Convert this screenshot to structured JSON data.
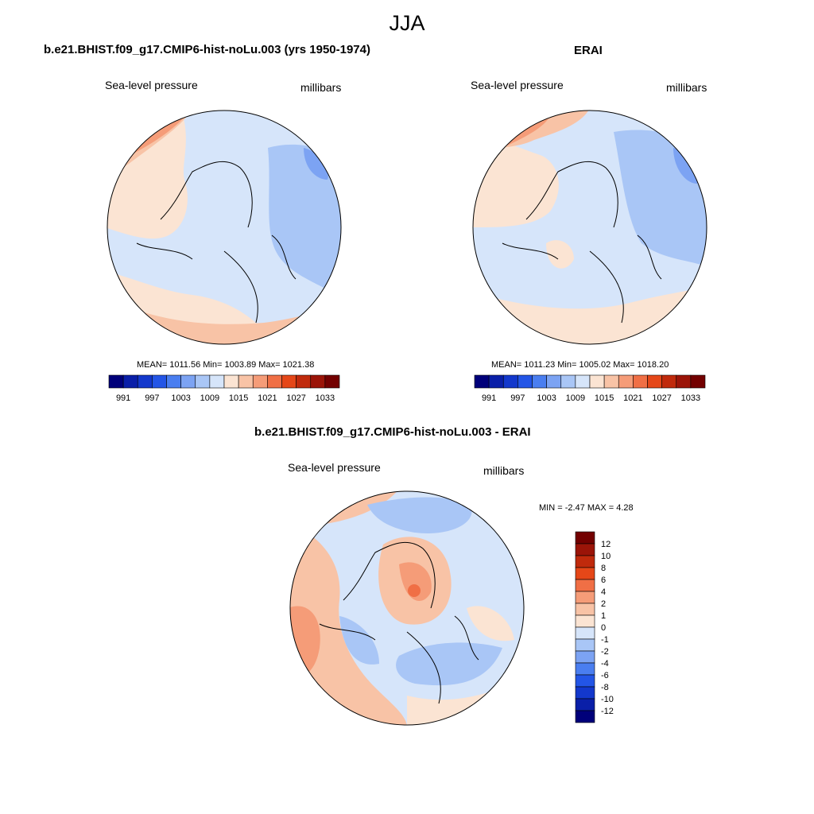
{
  "main_title": "JJA",
  "panels": [
    {
      "title": "b.e21.BHIST.f09_g17.CMIP6-hist-noLu.003 (yrs 1950-1974)",
      "left_label": "Sea-level pressure",
      "right_label": "millibars",
      "stats": "MEAN= 1011.56  Min= 1003.89  Max= 1021.38"
    },
    {
      "title": "ERAI",
      "left_label": "Sea-level pressure",
      "right_label": "millibars",
      "stats": "MEAN= 1011.23  Min= 1005.02  Max= 1018.20"
    },
    {
      "title": "b.e21.BHIST.f09_g17.CMIP6-hist-noLu.003 - ERAI",
      "left_label": "Sea-level pressure",
      "right_label": "millibars",
      "stats": "MIN =  -2.47 MAX =   4.28"
    }
  ],
  "colorbar_abs": {
    "colors": [
      "#00007a",
      "#0a1fa8",
      "#1338cc",
      "#2355e6",
      "#4a7ef0",
      "#7ca3f3",
      "#a9c6f6",
      "#d6e5fa",
      "#fbe4d3",
      "#f8c3a6",
      "#f59c78",
      "#f06f45",
      "#e54718",
      "#c02a0c",
      "#9b1408",
      "#730000"
    ],
    "tick_labels": [
      "991",
      "997",
      "1003",
      "1009",
      "1015",
      "1021",
      "1027",
      "1033"
    ]
  },
  "colorbar_diff": {
    "colors": [
      "#00007a",
      "#0a1fa8",
      "#1338cc",
      "#2355e6",
      "#4a7ef0",
      "#7ca3f3",
      "#a9c6f6",
      "#d6e5fa",
      "#fbe4d3",
      "#f8c3a6",
      "#f59c78",
      "#f06f45",
      "#e54718",
      "#c02a0c",
      "#9b1408",
      "#730000"
    ],
    "tick_labels": [
      "-12",
      "-10",
      "-8",
      "-6",
      "-4",
      "-2",
      "-1",
      "0",
      "1",
      "2",
      "4",
      "6",
      "8",
      "10",
      "12"
    ]
  },
  "map_colors": {
    "ocean_light_blue": "#d6e5fa",
    "blue": "#a9c6f6",
    "mid_blue": "#7ca3f3",
    "light_orange": "#fbe4d3",
    "orange": "#f8c3a6",
    "dark_orange": "#f59c78",
    "red": "#f06f45"
  }
}
